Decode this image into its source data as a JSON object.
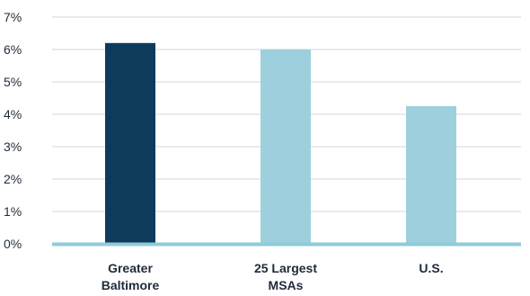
{
  "chart_data": {
    "type": "bar",
    "categories": [
      "Greater Baltimore",
      "25 Largest MSAs",
      "U.S."
    ],
    "category_label_lines": [
      [
        "Greater",
        "Baltimore"
      ],
      [
        "25 Largest",
        "MSAs"
      ],
      [
        "U.S."
      ]
    ],
    "values": [
      6.2,
      6.0,
      4.25
    ],
    "bar_colors": [
      "#0e3a5c",
      "#9dd0dc",
      "#9dd0dc"
    ],
    "ylim": [
      0,
      7
    ],
    "yticks": [
      "0%",
      "1%",
      "2%",
      "3%",
      "4%",
      "5%",
      "6%",
      "7%"
    ],
    "grid": true,
    "grid_color": "#c9d8e0",
    "baseline_color": "#8ecbd9",
    "title": "",
    "xlabel": "",
    "ylabel": ""
  }
}
